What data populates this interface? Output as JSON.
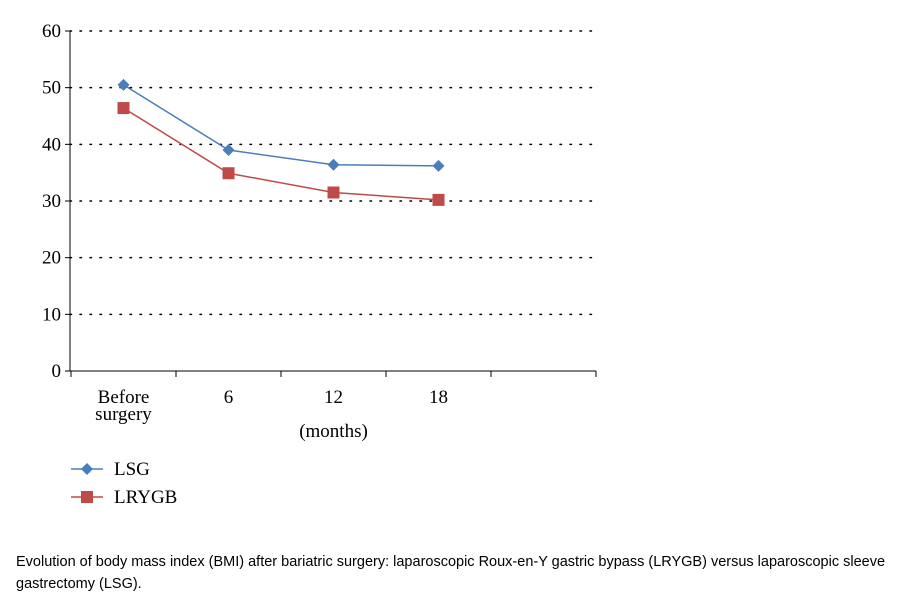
{
  "chart_data": {
    "type": "line",
    "categories": [
      "Before surgery",
      "6",
      "12",
      "18"
    ],
    "category_lines": [
      [
        "Before",
        "surgery"
      ],
      [
        "6"
      ],
      [
        "12"
      ],
      [
        "18"
      ]
    ],
    "xlabel": "(months)",
    "ylabel": "",
    "ylim": [
      0,
      60
    ],
    "yticks": [
      0,
      10,
      20,
      30,
      40,
      50,
      60
    ],
    "grid": true,
    "legend_position": "bottom-left",
    "series": [
      {
        "name": "LSG",
        "values": [
          50.5,
          39.0,
          36.4,
          36.2
        ],
        "color": "#4a7ebb",
        "marker": "diamond"
      },
      {
        "name": "LRYGB",
        "values": [
          46.4,
          34.9,
          31.5,
          30.2
        ],
        "color": "#be4b48",
        "marker": "square"
      }
    ]
  },
  "caption": "Evolution of body mass index (BMI) after bariatric surgery: laparoscopic Roux-en-Y gastric bypass (LRYGB) versus laparoscopic sleeve gastrectomy (LSG)."
}
